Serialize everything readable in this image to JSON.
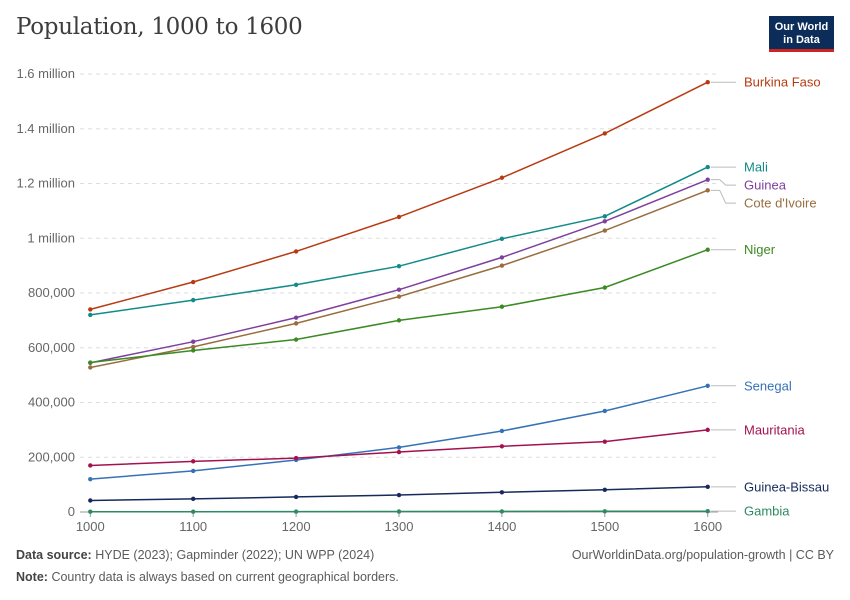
{
  "header": {
    "title": "Population, 1000 to 1600",
    "logo_line1": "Our World",
    "logo_line2": "in Data"
  },
  "footer": {
    "source_label": "Data source:",
    "source_text": "HYDE (2023); Gapminder (2022); UN WPP (2024)",
    "note_label": "Note:",
    "note_text": "Country data is always based on current geographical borders.",
    "credit": "OurWorldinData.org/population-growth | CC BY"
  },
  "chart_data": {
    "type": "line",
    "title": "Population, 1000 to 1600",
    "x": [
      1000,
      1100,
      1200,
      1300,
      1400,
      1500,
      1600
    ],
    "xlim": [
      990,
      1610
    ],
    "ylim": [
      0,
      1600000
    ],
    "y_ticks": [
      0,
      200000,
      400000,
      600000,
      800000,
      1000000,
      1200000,
      1400000,
      1600000
    ],
    "y_tick_labels": [
      "0",
      "200,000",
      "400,000",
      "600,000",
      "800,000",
      "1 million",
      "1.2 million",
      "1.4 million",
      "1.6 million"
    ],
    "x_tick_labels": [
      "1000",
      "1100",
      "1200",
      "1300",
      "1400",
      "1500",
      "1600"
    ],
    "grid": "horizontal dashed",
    "legend": "right, labels at line ends",
    "series": [
      {
        "name": "Burkina Faso",
        "color": "#b83a12",
        "values": [
          740000,
          840000,
          952000,
          1078000,
          1221000,
          1383000,
          1570000
        ]
      },
      {
        "name": "Mali",
        "color": "#128a8a",
        "values": [
          720000,
          774000,
          830000,
          898000,
          998000,
          1080000,
          1260000
        ]
      },
      {
        "name": "Guinea",
        "color": "#7f3f9f",
        "values": [
          545000,
          622000,
          710000,
          812000,
          930000,
          1062000,
          1214000
        ]
      },
      {
        "name": "Cote d'Ivoire",
        "color": "#996d3f",
        "values": [
          528000,
          603000,
          689000,
          787000,
          900000,
          1028000,
          1175000
        ]
      },
      {
        "name": "Niger",
        "color": "#3b8a22",
        "values": [
          546000,
          590000,
          630000,
          700000,
          750000,
          820000,
          958000
        ]
      },
      {
        "name": "Senegal",
        "color": "#3572b5",
        "values": [
          120000,
          150000,
          190000,
          236000,
          296000,
          369000,
          461000
        ]
      },
      {
        "name": "Mauritania",
        "color": "#a3124f",
        "values": [
          170000,
          185000,
          197000,
          219000,
          240000,
          257000,
          300000
        ]
      },
      {
        "name": "Guinea-Bissau",
        "color": "#172a5c",
        "values": [
          42000,
          48000,
          55000,
          62000,
          72000,
          81000,
          92000
        ]
      },
      {
        "name": "Gambia",
        "color": "#2e8a62",
        "values": [
          1000,
          1200,
          1500,
          1800,
          2200,
          2600,
          3100
        ]
      }
    ]
  }
}
